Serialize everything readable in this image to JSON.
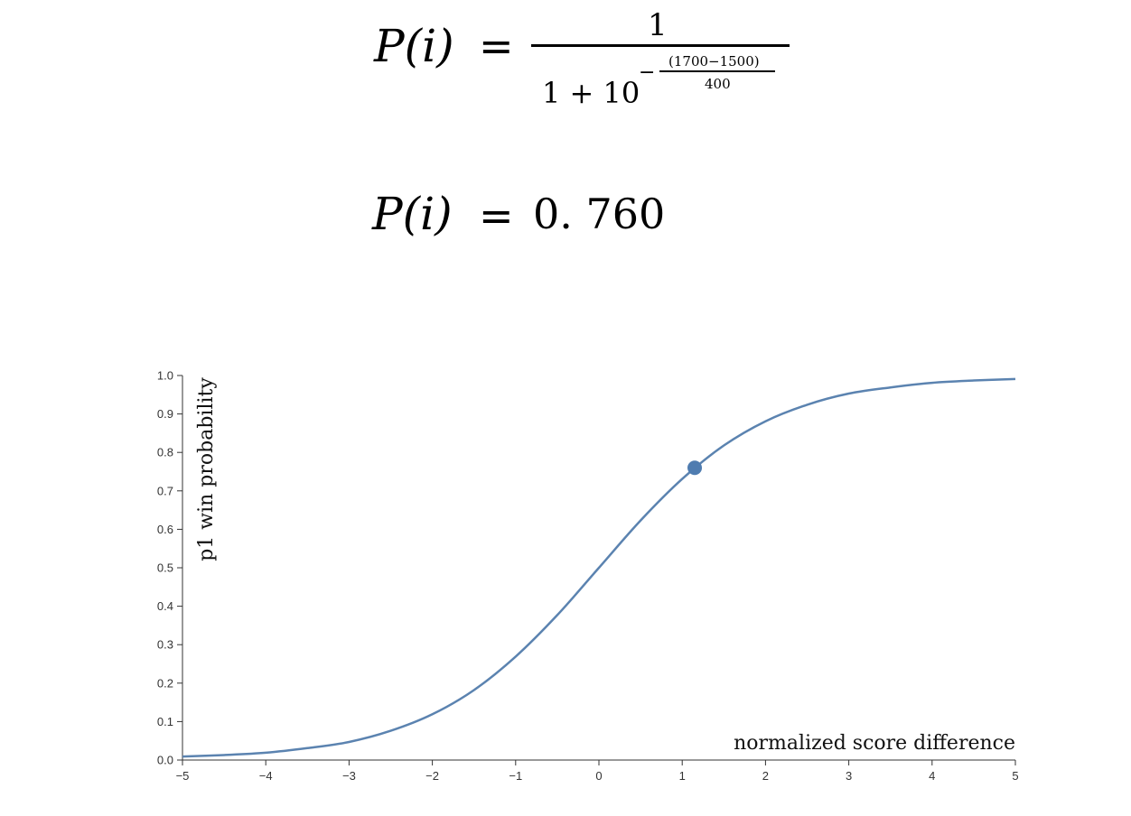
{
  "formula": {
    "lhs_symbol": "P",
    "lhs_arg": "(i)",
    "equals": "=",
    "numerator": "1",
    "denominator_base": "1 + 10",
    "exponent_sign": "−",
    "exponent_numerator": "(1700−1500)",
    "exponent_denominator": "400",
    "result_value": "0. 760"
  },
  "chart_data": {
    "type": "line",
    "xlabel": "normalized score difference",
    "ylabel": "p1 win probability",
    "xlim": [
      -5,
      5
    ],
    "ylim": [
      0,
      1
    ],
    "x_ticks": [
      "−5",
      "−4",
      "−3",
      "−2",
      "−1",
      "0",
      "1",
      "2",
      "3",
      "4",
      "5"
    ],
    "y_ticks": [
      "0.0",
      "0.1",
      "0.2",
      "0.3",
      "0.4",
      "0.5",
      "0.6",
      "0.7",
      "0.8",
      "0.9",
      "1.0"
    ],
    "series": [
      {
        "x": [
          -5,
          -4.5,
          -4,
          -3.5,
          -3,
          -2.5,
          -2,
          -1.5,
          -1,
          -0.5,
          0,
          0.5,
          1,
          1.5,
          2,
          2.5,
          3,
          3.5,
          4,
          4.5,
          5
        ],
        "values": [
          0.009,
          0.013,
          0.019,
          0.031,
          0.047,
          0.076,
          0.119,
          0.182,
          0.269,
          0.377,
          0.5,
          0.623,
          0.731,
          0.818,
          0.881,
          0.924,
          0.953,
          0.969,
          0.981,
          0.987,
          0.991
        ]
      }
    ],
    "highlight_point": {
      "x": 1.15,
      "y": 0.76
    },
    "grid": false,
    "line_color": "#5b83b0",
    "point_color": "#4f7cb0",
    "axis_color": "#333333"
  }
}
